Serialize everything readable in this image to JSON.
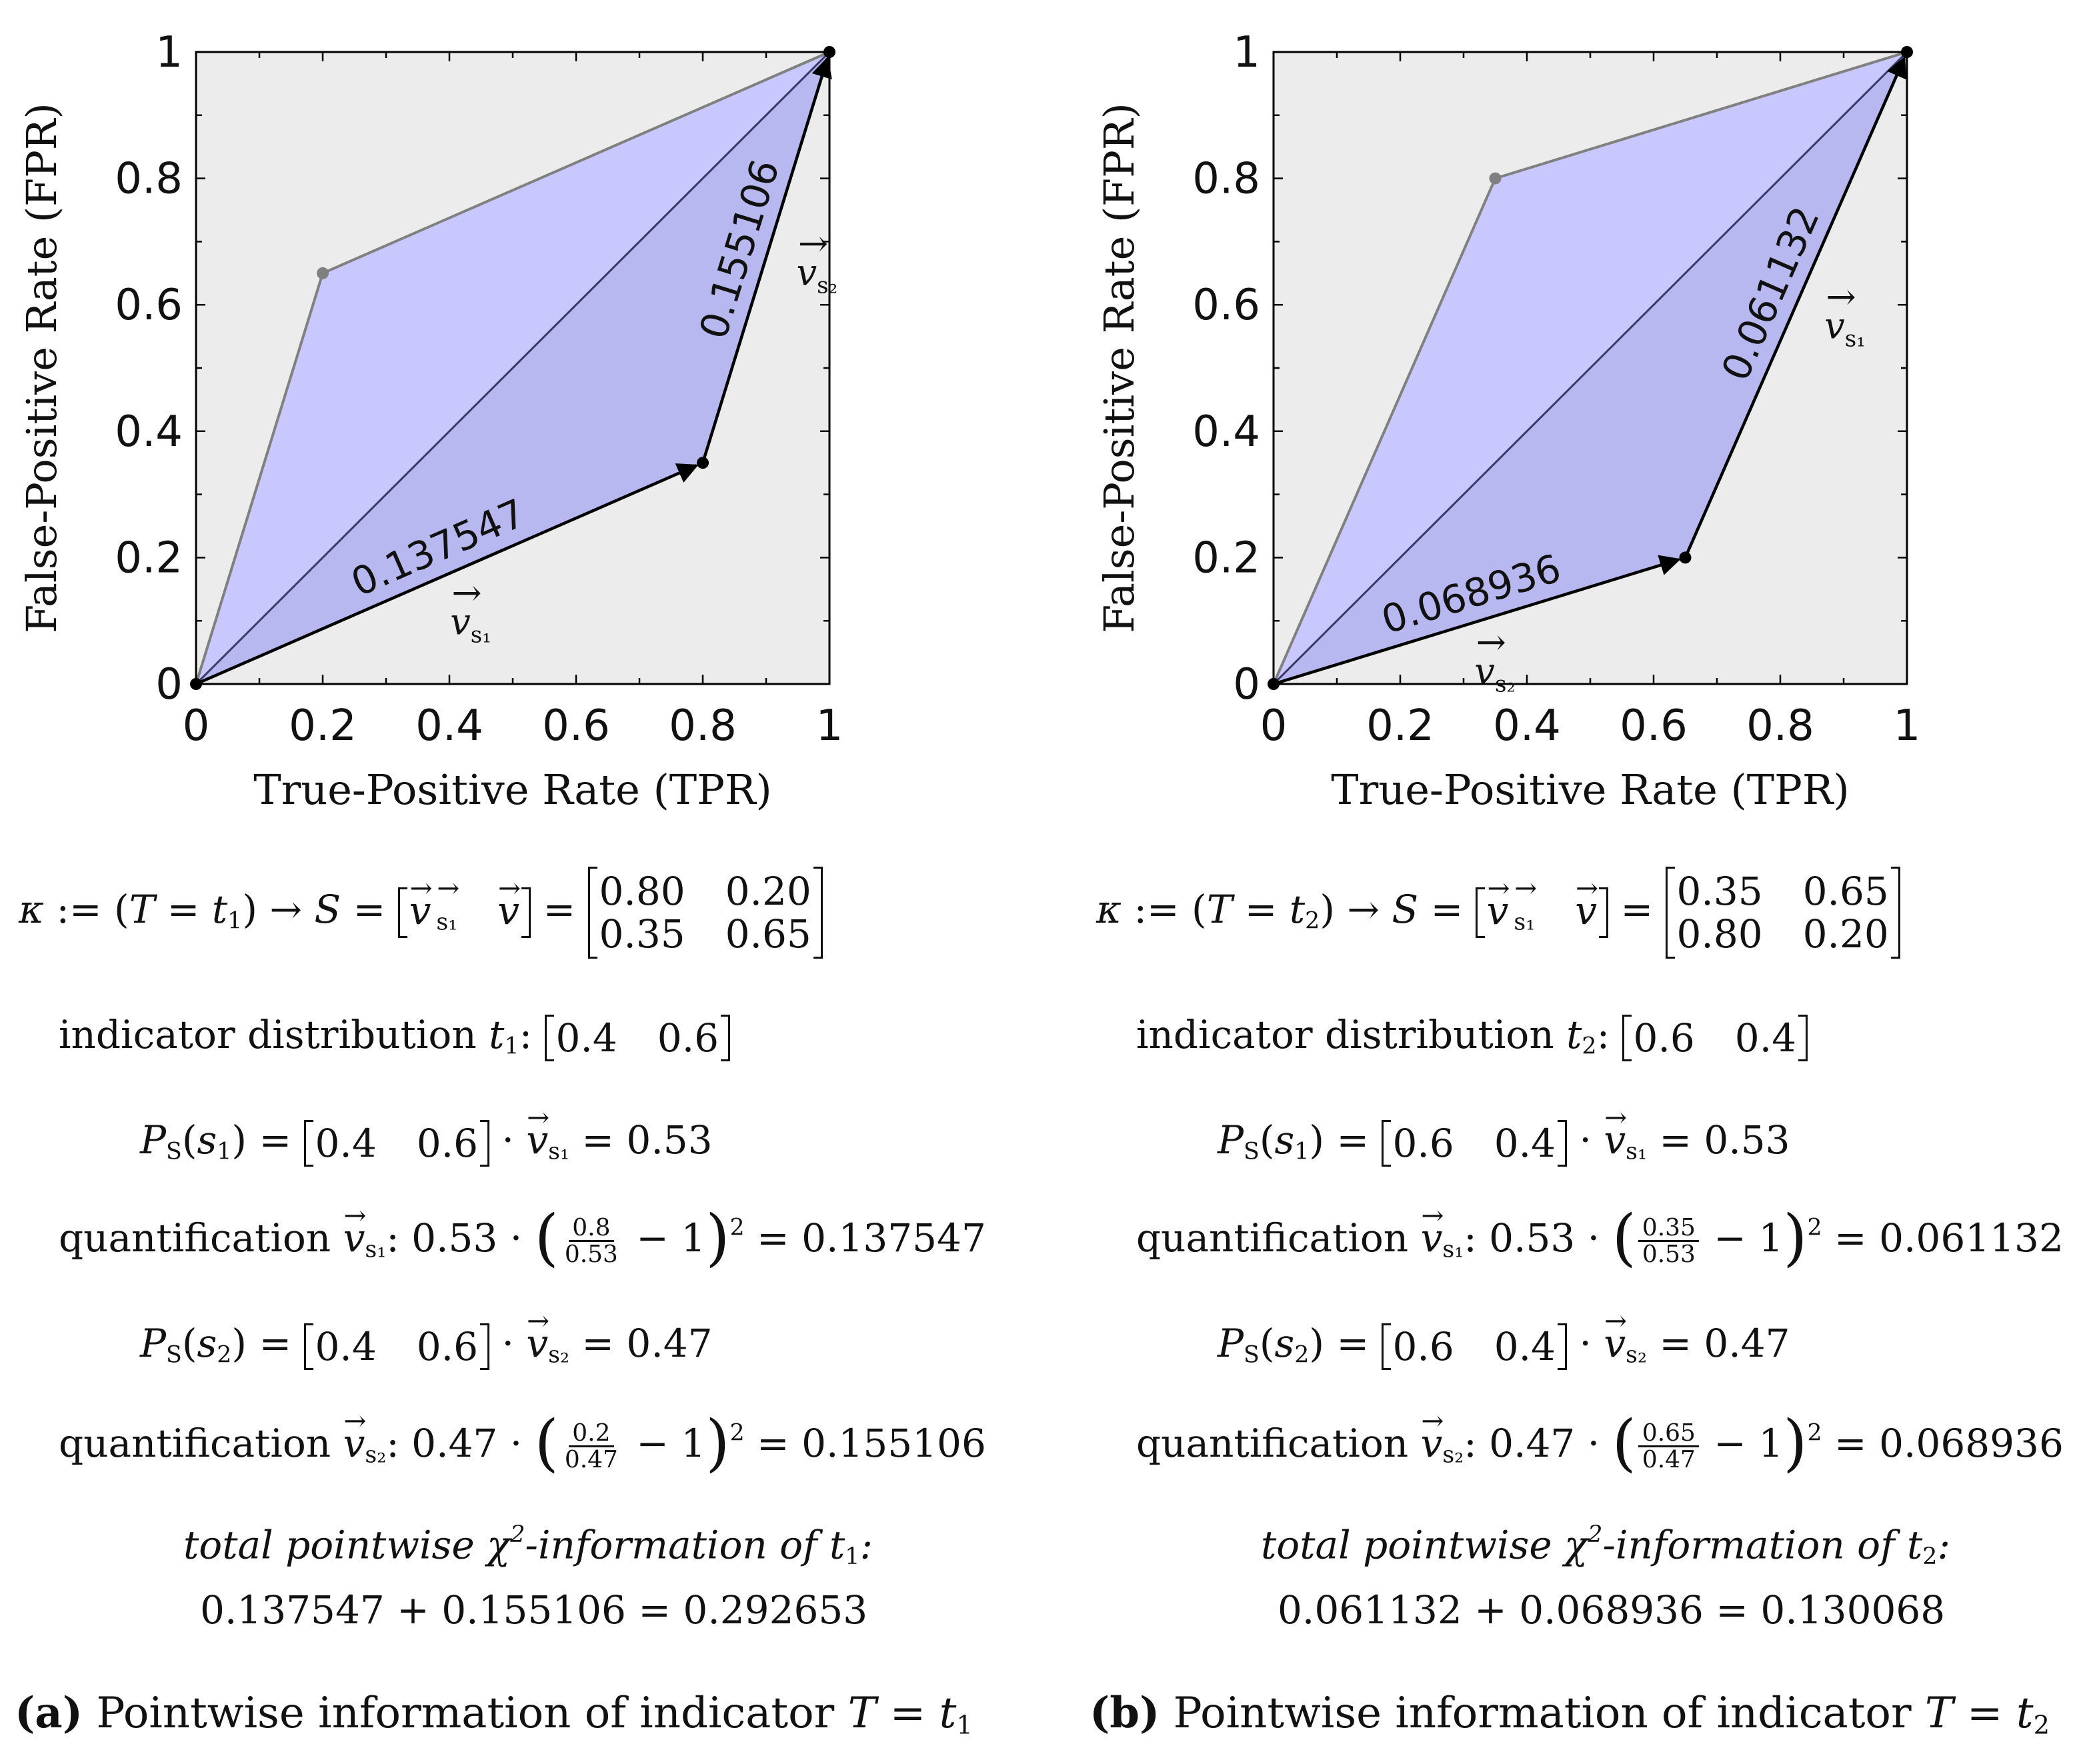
{
  "chart_data": [
    {
      "type": "scatter",
      "panel": "a",
      "xlabel": "True-Positive Rate (TPR)",
      "ylabel": "False-Positive Rate (FPR)",
      "xlim": [
        0,
        1
      ],
      "ylim": [
        0,
        1
      ],
      "xticks": [
        "0",
        "0.2",
        "0.4",
        "0.6",
        "0.8",
        "1"
      ],
      "yticks": [
        "0",
        "0.2",
        "0.4",
        "0.6",
        "0.8",
        "1"
      ],
      "upper_point": [
        0.2,
        0.65
      ],
      "lower_point": [
        0.8,
        0.35
      ],
      "vectors": [
        {
          "name": "v",
          "sub": "s1",
          "from": [
            0,
            0
          ],
          "to": [
            0.8,
            0.35
          ],
          "value": "0.137547"
        },
        {
          "name": "v",
          "sub": "s2",
          "from": [
            0.8,
            0.35
          ],
          "to": [
            1,
            1
          ],
          "value": "0.155106"
        }
      ]
    },
    {
      "type": "scatter",
      "panel": "b",
      "xlabel": "True-Positive Rate (TPR)",
      "ylabel": "False-Positive Rate (FPR)",
      "xlim": [
        0,
        1
      ],
      "ylim": [
        0,
        1
      ],
      "xticks": [
        "0",
        "0.2",
        "0.4",
        "0.6",
        "0.8",
        "1"
      ],
      "yticks": [
        "0",
        "0.2",
        "0.4",
        "0.6",
        "0.8",
        "1"
      ],
      "upper_point": [
        0.35,
        0.8
      ],
      "lower_point": [
        0.65,
        0.2
      ],
      "vectors": [
        {
          "name": "v",
          "sub": "s2",
          "from": [
            0,
            0
          ],
          "to": [
            0.65,
            0.2
          ],
          "value": "0.068936"
        },
        {
          "name": "v",
          "sub": "s1",
          "from": [
            0.65,
            0.2
          ],
          "to": [
            1,
            1
          ],
          "value": "0.061132"
        }
      ]
    }
  ],
  "panels": [
    {
      "t": "t",
      "t_sub": "1",
      "matrix": [
        "0.80",
        "0.20",
        "0.35",
        "0.65"
      ],
      "indicator_label": "indicator distribution",
      "dist": [
        "0.4",
        "0.6"
      ],
      "p1": "0.53",
      "p2": "0.47",
      "q_label": "quantification",
      "q1_coef": "0.53",
      "q1_num": "0.8",
      "q1_den": "0.53",
      "q1_result": "0.137547",
      "q2_coef": "0.47",
      "q2_num": "0.2",
      "q2_den": "0.47",
      "q2_result": "0.155106",
      "total_title": "total pointwise",
      "total_title2": "-information of",
      "total_sum": "0.137547 + 0.155106 = 0.292653",
      "caption_letter": "(a)",
      "caption_text": "Pointwise information of indicator"
    },
    {
      "t": "t",
      "t_sub": "2",
      "matrix": [
        "0.35",
        "0.65",
        "0.80",
        "0.20"
      ],
      "indicator_label": "indicator distribution",
      "dist": [
        "0.6",
        "0.4"
      ],
      "p1": "0.53",
      "p2": "0.47",
      "q_label": "quantification",
      "q1_coef": "0.53",
      "q1_num": "0.35",
      "q1_den": "0.53",
      "q1_result": "0.061132",
      "q2_coef": "0.47",
      "q2_num": "0.65",
      "q2_den": "0.47",
      "q2_result": "0.068936",
      "total_title": "total pointwise",
      "total_title2": "-information of",
      "total_sum": "0.061132 + 0.068936 = 0.130068",
      "caption_letter": "(b)",
      "caption_text": "Pointwise information of indicator"
    }
  ],
  "colors": {
    "fill_light": "#c8c8ff",
    "fill_mid": "#b8b8f0",
    "bg_gray": "#ececec",
    "edge_gray": "#808080",
    "diag": "#3a3a6a"
  }
}
